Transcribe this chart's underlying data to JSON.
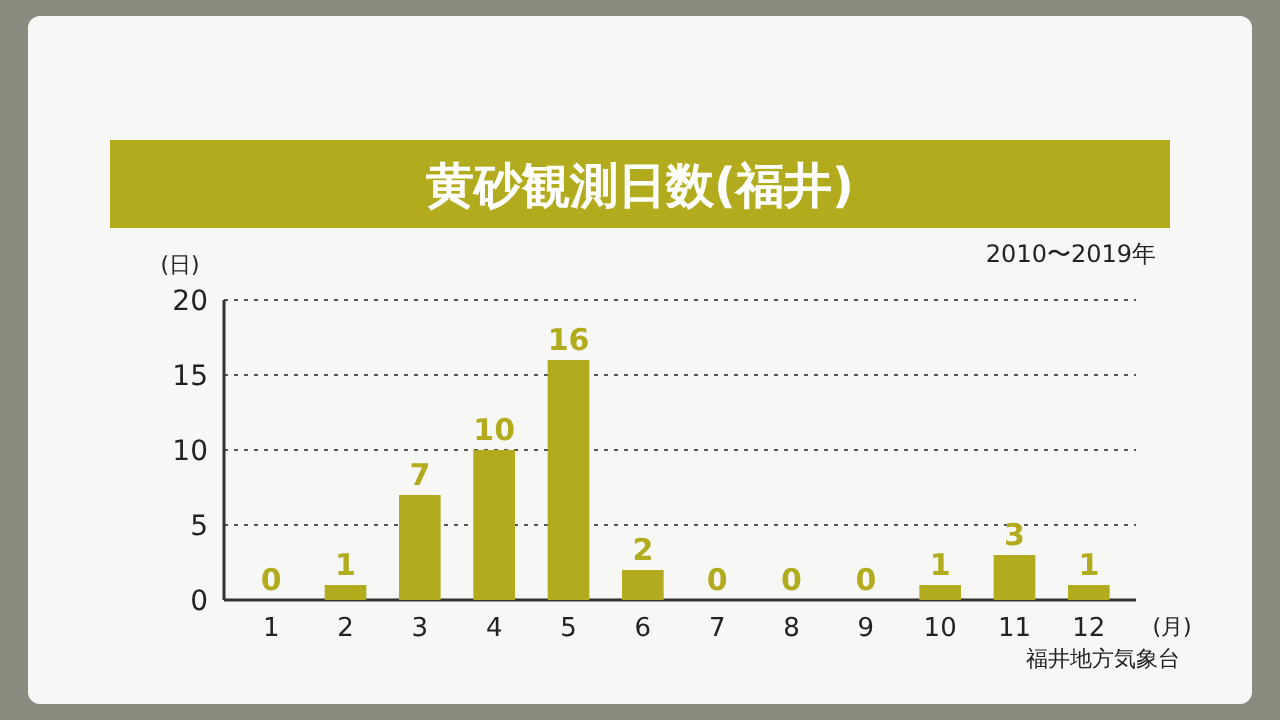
{
  "chart_data": {
    "type": "bar",
    "title": "黄砂観測日数(福井)",
    "subtitle": "2010〜2019年",
    "ylabel": "(日)",
    "xlabel": "(月)",
    "annotations": [
      "福井地方気象台"
    ],
    "categories": [
      "1",
      "2",
      "3",
      "4",
      "5",
      "6",
      "7",
      "8",
      "9",
      "10",
      "11",
      "12"
    ],
    "values": [
      0,
      1,
      7,
      10,
      16,
      2,
      0,
      0,
      0,
      1,
      3,
      1
    ],
    "color": "#b3ab1e",
    "data_labels": true,
    "ylim": [
      0,
      20
    ],
    "yticks": [
      0,
      5,
      10,
      15,
      20
    ],
    "grid": "y"
  }
}
